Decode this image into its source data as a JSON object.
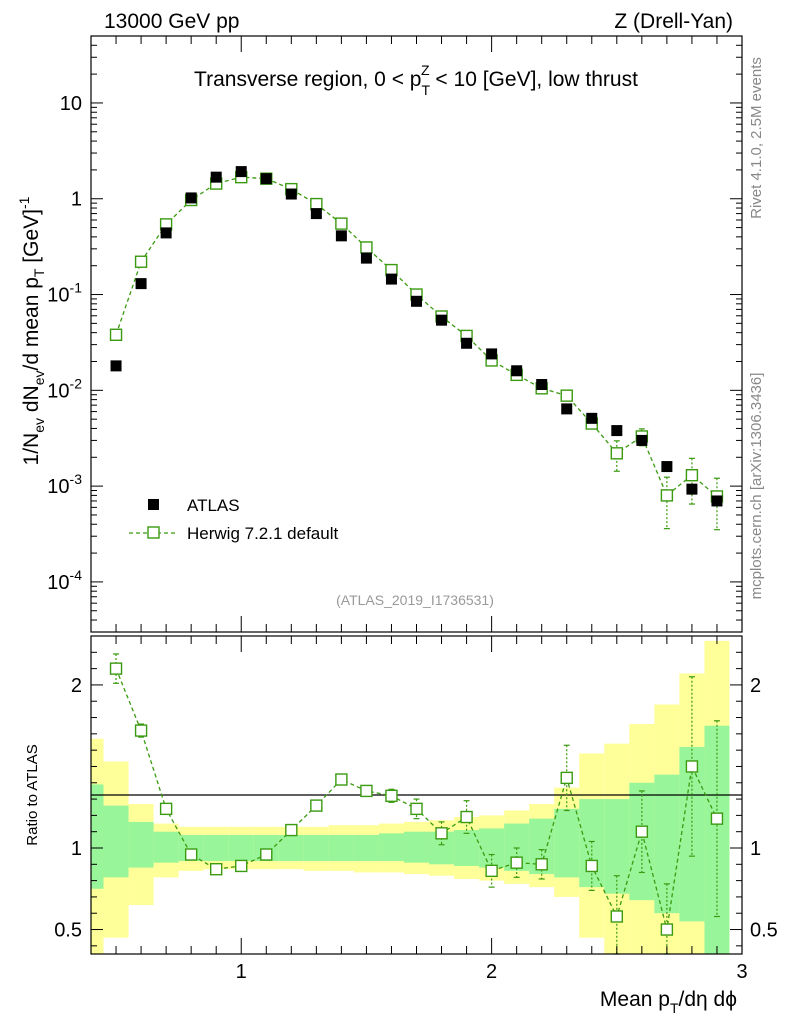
{
  "header": {
    "energy": "13000 GeV pp",
    "process": "Z (Drell-Yan)"
  },
  "side": {
    "rivet": "Rivet 4.1.0,  2.5M events",
    "url": "mcplots.cern.ch [arXiv:1306.3436]"
  },
  "chart_data": {
    "type": "scatter",
    "title": "Transverse region, 0 < pT^Z < 10 [GeV], low thrust",
    "title_parts": {
      "a": "Transverse region, 0 < p",
      "sub": "T",
      "sup": "Z",
      "b": " < 10 [GeV], low thrust"
    },
    "analysis_id": "(ATLAS_2019_I1736531)",
    "ylabel": "1/Nev dNev/d mean pT [GeV]^-1",
    "ylabel_parts": {
      "a": "1/N",
      "sub1": "ev",
      "b": " dN",
      "sub2": "ev",
      "c": "/d mean p",
      "sub3": "T",
      "d": " [GeV]",
      "sup": "-1"
    },
    "xlabel": "Mean pT/dη dϕ",
    "xlabel_parts": {
      "a": "Mean p",
      "sub": "T",
      "b": "/dη dϕ"
    },
    "ratio_ylabel": "Ratio to ATLAS",
    "xlim": [
      0.4,
      3.0
    ],
    "ylim_log": [
      3e-05,
      50
    ],
    "ratio_ylim": [
      0.35,
      2.3
    ],
    "x_ticks": [
      "1",
      "2",
      "3"
    ],
    "y_ticks": [
      {
        "mant": "10",
        "exp": "-4"
      },
      {
        "mant": "10",
        "exp": "-3"
      },
      {
        "mant": "10",
        "exp": "-2"
      },
      {
        "mant": "10",
        "exp": "-1"
      },
      {
        "mant": "1",
        "exp": ""
      },
      {
        "mant": "10",
        "exp": ""
      }
    ],
    "ratio_ticks": [
      "0.5",
      "1",
      "2"
    ],
    "x": [
      0.5,
      0.6,
      0.7,
      0.8,
      0.9,
      1.0,
      1.1,
      1.2,
      1.3,
      1.4,
      1.5,
      1.6,
      1.7,
      1.8,
      1.9,
      2.0,
      2.1,
      2.2,
      2.3,
      2.4,
      2.5,
      2.6,
      2.7,
      2.8,
      2.9
    ],
    "series": [
      {
        "name": "ATLAS",
        "marker": "filled-square",
        "color": "#000000",
        "values": [
          0.018,
          0.13,
          0.44,
          1.02,
          1.68,
          1.92,
          1.62,
          1.12,
          0.7,
          0.41,
          0.24,
          0.145,
          0.085,
          0.054,
          0.031,
          0.024,
          0.016,
          0.0115,
          0.0064,
          0.0051,
          0.0038,
          0.003,
          0.0016,
          0.00093,
          0.0007
        ]
      },
      {
        "name": "Herwig 7.2.1 default",
        "marker": "open-square",
        "color": "#3a9a10",
        "values": [
          0.038,
          0.22,
          0.54,
          0.97,
          1.44,
          1.68,
          1.62,
          1.26,
          0.88,
          0.55,
          0.31,
          0.18,
          0.1,
          0.059,
          0.037,
          0.0205,
          0.0145,
          0.0105,
          0.0088,
          0.0045,
          0.0022,
          0.0033,
          0.0008,
          0.0013,
          0.00078
        ],
        "y_err_rel": [
          0.03,
          0.02,
          0.02,
          0.02,
          0.02,
          0.02,
          0.02,
          0.02,
          0.02,
          0.02,
          0.02,
          0.02,
          0.02,
          0.03,
          0.04,
          0.06,
          0.07,
          0.08,
          0.1,
          0.14,
          0.35,
          0.2,
          0.55,
          0.5,
          0.55
        ]
      }
    ],
    "ratio_values": [
      2.1,
      1.72,
      1.24,
      0.96,
      0.87,
      0.89,
      0.96,
      1.11,
      1.26,
      1.42,
      1.35,
      1.32,
      1.24,
      1.09,
      1.19,
      0.86,
      0.91,
      0.9,
      1.43,
      0.89,
      0.58,
      1.1,
      0.5,
      1.5,
      1.18
    ],
    "ratio_err": [
      0.09,
      0.04,
      0.03,
      0.02,
      0.02,
      0.02,
      0.02,
      0.02,
      0.02,
      0.03,
      0.03,
      0.04,
      0.06,
      0.07,
      0.1,
      0.1,
      0.09,
      0.09,
      0.2,
      0.15,
      0.25,
      0.25,
      0.28,
      0.55,
      0.6
    ],
    "band_bins": [
      0.35,
      0.45,
      0.55,
      0.65,
      0.75,
      0.85,
      0.95,
      1.05,
      1.15,
      1.25,
      1.35,
      1.45,
      1.55,
      1.65,
      1.75,
      1.85,
      1.95,
      2.05,
      2.15,
      2.25,
      2.35,
      2.45,
      2.55,
      2.65,
      2.75,
      2.85,
      2.95
    ],
    "band_stat_lo": [
      0.75,
      0.82,
      0.88,
      0.91,
      0.92,
      0.92,
      0.92,
      0.92,
      0.92,
      0.92,
      0.92,
      0.92,
      0.92,
      0.91,
      0.9,
      0.89,
      0.88,
      0.86,
      0.84,
      0.82,
      0.76,
      0.72,
      0.68,
      0.6,
      0.55,
      0.35
    ],
    "band_stat_hi": [
      1.39,
      1.26,
      1.16,
      1.1,
      1.08,
      1.08,
      1.08,
      1.08,
      1.08,
      1.08,
      1.08,
      1.08,
      1.09,
      1.1,
      1.1,
      1.11,
      1.12,
      1.15,
      1.18,
      1.24,
      1.3,
      1.3,
      1.4,
      1.45,
      1.62,
      1.75
    ],
    "band_tot_lo": [
      0.35,
      0.45,
      0.65,
      0.82,
      0.86,
      0.87,
      0.87,
      0.87,
      0.87,
      0.86,
      0.86,
      0.85,
      0.85,
      0.84,
      0.83,
      0.81,
      0.8,
      0.78,
      0.76,
      0.7,
      0.45,
      0.35,
      0.35,
      0.35,
      0.35,
      0.35
    ],
    "band_tot_hi": [
      1.67,
      1.53,
      1.27,
      1.15,
      1.13,
      1.13,
      1.13,
      1.13,
      1.13,
      1.13,
      1.14,
      1.14,
      1.15,
      1.16,
      1.17,
      1.19,
      1.2,
      1.23,
      1.27,
      1.37,
      1.58,
      1.64,
      1.76,
      1.88,
      2.07,
      2.27
    ]
  }
}
